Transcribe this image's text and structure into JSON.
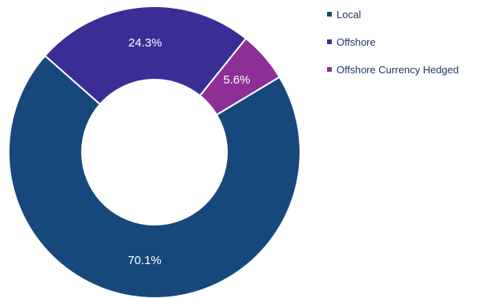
{
  "chart_data": {
    "type": "pie",
    "variant": "donut",
    "categories": [
      "Local",
      "Offshore",
      "Offshore Currency Hedged"
    ],
    "values": [
      70.1,
      24.3,
      5.6
    ],
    "labels": [
      "70.1%",
      "24.3%",
      "5.6%"
    ],
    "colors": [
      "#17487b",
      "#3a2e96",
      "#8e2f98"
    ],
    "unit": "%",
    "legend_position": "top-right",
    "title": ""
  }
}
